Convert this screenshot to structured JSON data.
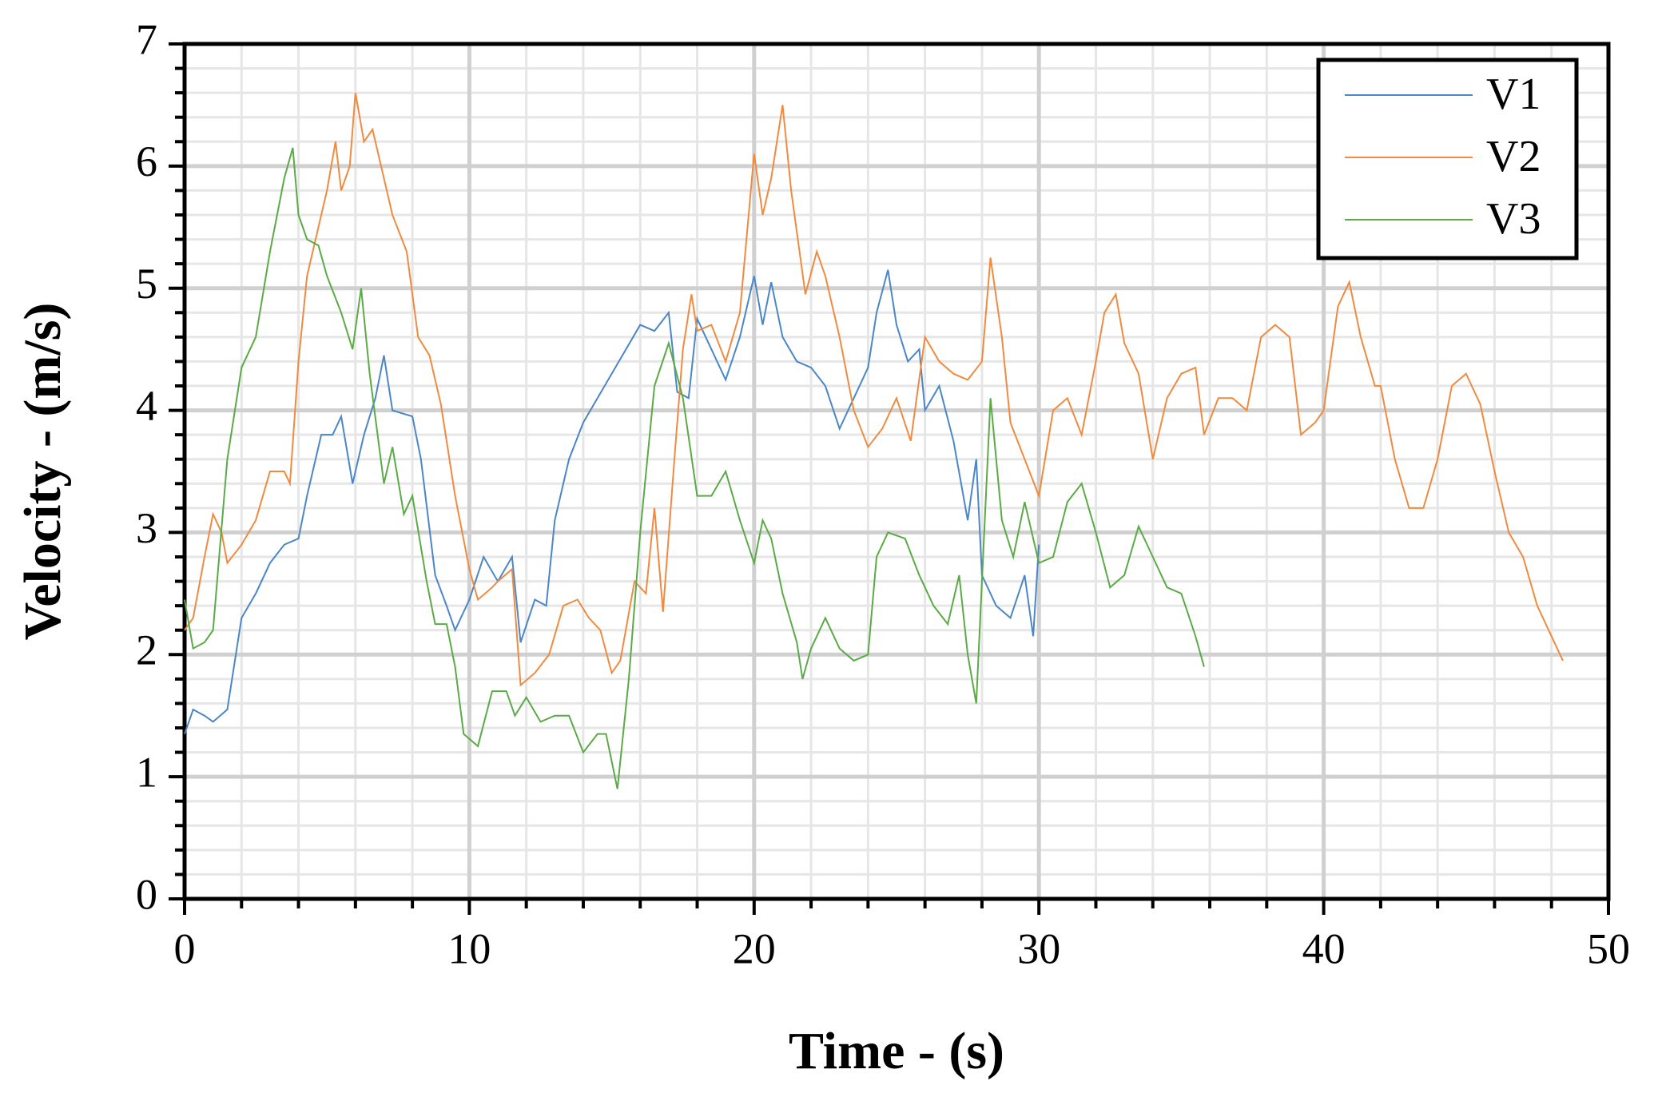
{
  "chart_data": {
    "type": "line",
    "xlabel": "Time - (s)",
    "ylabel": "Velocity - (m/s)",
    "xlim": [
      0,
      50
    ],
    "ylim": [
      0,
      7
    ],
    "xticks": [
      0,
      10,
      20,
      30,
      40,
      50
    ],
    "yticks": [
      0,
      1,
      2,
      3,
      4,
      5,
      6,
      7
    ],
    "grid": true,
    "minor_grid": true,
    "legend": "upper right",
    "series": [
      {
        "name": "V1",
        "color": "#4a86c8",
        "x": [
          0,
          0.3,
          0.7,
          1,
          1.5,
          2,
          2.5,
          3,
          3.5,
          4,
          4.3,
          4.8,
          5.2,
          5.5,
          5.9,
          6.3,
          6.7,
          7,
          7.3,
          8,
          8.3,
          8.8,
          9.2,
          9.5,
          10,
          10.5,
          11,
          11.5,
          11.8,
          12.3,
          12.7,
          13,
          13.5,
          14,
          14.5,
          15,
          15.5,
          16,
          16.5,
          17,
          17.3,
          17.7,
          18,
          18.5,
          19,
          19.5,
          20,
          20.3,
          20.6,
          21,
          21.5,
          22,
          22.5,
          23,
          23.5,
          24,
          24.3,
          24.7,
          25,
          25.4,
          25.8,
          26,
          26.5,
          27,
          27.5,
          27.8,
          28,
          28.5,
          29,
          29.5,
          29.8,
          30
        ],
        "values": [
          1.35,
          1.55,
          1.5,
          1.45,
          1.55,
          2.3,
          2.5,
          2.75,
          2.9,
          2.95,
          3.3,
          3.8,
          3.8,
          3.95,
          3.4,
          3.8,
          4.1,
          4.45,
          4.0,
          3.95,
          3.6,
          2.65,
          2.4,
          2.2,
          2.45,
          2.8,
          2.6,
          2.8,
          2.1,
          2.45,
          2.4,
          3.1,
          3.6,
          3.9,
          4.1,
          4.3,
          4.5,
          4.7,
          4.65,
          4.8,
          4.15,
          4.1,
          4.75,
          4.5,
          4.25,
          4.6,
          5.1,
          4.7,
          5.05,
          4.6,
          4.4,
          4.35,
          4.2,
          3.85,
          4.1,
          4.35,
          4.8,
          5.15,
          4.7,
          4.4,
          4.5,
          4.0,
          4.2,
          3.75,
          3.1,
          3.6,
          2.65,
          2.4,
          2.3,
          2.65,
          2.15,
          2.9
        ]
      },
      {
        "name": "V2",
        "color": "#f08a3e",
        "x": [
          0,
          0.3,
          0.7,
          1,
          1.3,
          1.5,
          2,
          2.5,
          3,
          3.5,
          3.7,
          4,
          4.3,
          4.7,
          5,
          5.3,
          5.5,
          5.8,
          6,
          6.3,
          6.6,
          7,
          7.3,
          7.8,
          8.2,
          8.6,
          9,
          9.5,
          10,
          10.3,
          10.8,
          11,
          11.5,
          11.8,
          12.3,
          12.8,
          13.3,
          13.8,
          14.2,
          14.6,
          15,
          15.3,
          15.8,
          16.2,
          16.5,
          16.8,
          17.2,
          17.5,
          17.8,
          18,
          18.5,
          19,
          19.5,
          20,
          20.3,
          20.6,
          21,
          21.3,
          21.8,
          22.2,
          22.5,
          23,
          23.5,
          24,
          24.5,
          25,
          25.5,
          26,
          26.5,
          27,
          27.5,
          28,
          28.3,
          28.7,
          29,
          29.5,
          30,
          30.5,
          31,
          31.5,
          32,
          32.3,
          32.7,
          33,
          33.5,
          34,
          34.5,
          35,
          35.5,
          35.8,
          36.3,
          36.8,
          37.3,
          37.8,
          38.3,
          38.8,
          39.2,
          39.7,
          40,
          40.5,
          40.9,
          41.3,
          41.8,
          42,
          42.5,
          43,
          43.5,
          44,
          44.5,
          45,
          45.5,
          46,
          46.5,
          47,
          47.5,
          48,
          48.4
        ],
        "values": [
          2.2,
          2.3,
          2.8,
          3.15,
          3.0,
          2.75,
          2.9,
          3.1,
          3.5,
          3.5,
          3.4,
          4.4,
          5.1,
          5.5,
          5.8,
          6.2,
          5.8,
          6.0,
          6.6,
          6.2,
          6.3,
          5.9,
          5.6,
          5.3,
          4.6,
          4.45,
          4.05,
          3.3,
          2.7,
          2.45,
          2.55,
          2.6,
          2.7,
          1.75,
          1.85,
          2.0,
          2.4,
          2.45,
          2.3,
          2.2,
          1.85,
          1.95,
          2.6,
          2.5,
          3.2,
          2.35,
          3.6,
          4.5,
          4.95,
          4.65,
          4.7,
          4.4,
          4.8,
          6.1,
          5.6,
          5.9,
          6.5,
          5.8,
          4.95,
          5.3,
          5.1,
          4.6,
          4.0,
          3.7,
          3.85,
          4.1,
          3.75,
          4.6,
          4.4,
          4.3,
          4.25,
          4.4,
          5.25,
          4.6,
          3.9,
          3.6,
          3.3,
          4.0,
          4.1,
          3.8,
          4.4,
          4.8,
          4.95,
          4.55,
          4.3,
          3.6,
          4.1,
          4.3,
          4.35,
          3.8,
          4.1,
          4.1,
          4.0,
          4.6,
          4.7,
          4.6,
          3.8,
          3.9,
          4.0,
          4.85,
          5.05,
          4.6,
          4.2,
          4.2,
          3.6,
          3.2,
          3.2,
          3.6,
          4.2,
          4.3,
          4.05,
          3.5,
          3.0,
          2.8,
          2.4,
          2.15,
          1.95
        ]
      },
      {
        "name": "V3",
        "color": "#5aaa46",
        "x": [
          0,
          0.3,
          0.7,
          1,
          1.5,
          2,
          2.5,
          3,
          3.5,
          3.8,
          4,
          4.3,
          4.7,
          5,
          5.5,
          5.9,
          6.2,
          6.5,
          7,
          7.3,
          7.7,
          8,
          8.5,
          8.8,
          9.2,
          9.5,
          9.8,
          10.3,
          10.8,
          11.3,
          11.6,
          12,
          12.5,
          13,
          13.5,
          14,
          14.5,
          14.8,
          15.2,
          15.6,
          16,
          16.5,
          17,
          17.5,
          18,
          18.5,
          19,
          19.5,
          20,
          20.3,
          20.6,
          21,
          21.5,
          21.7,
          22,
          22.5,
          23,
          23.5,
          24,
          24.3,
          24.7,
          25.3,
          25.8,
          26.3,
          26.8,
          27.2,
          27.5,
          27.8,
          28.3,
          28.7,
          29.1,
          29.5,
          30,
          30.5,
          31,
          31.5,
          32,
          32.5,
          33,
          33.5,
          34,
          34.5,
          35,
          35.5,
          35.8
        ],
        "values": [
          2.45,
          2.05,
          2.1,
          2.2,
          3.6,
          4.35,
          4.6,
          5.3,
          5.9,
          6.15,
          5.6,
          5.4,
          5.35,
          5.1,
          4.8,
          4.5,
          5.0,
          4.3,
          3.4,
          3.7,
          3.15,
          3.3,
          2.6,
          2.25,
          2.25,
          1.9,
          1.35,
          1.25,
          1.7,
          1.7,
          1.5,
          1.65,
          1.45,
          1.5,
          1.5,
          1.2,
          1.35,
          1.35,
          0.9,
          1.8,
          3.0,
          4.2,
          4.55,
          4.1,
          3.3,
          3.3,
          3.5,
          3.1,
          2.75,
          3.1,
          2.95,
          2.5,
          2.1,
          1.8,
          2.05,
          2.3,
          2.05,
          1.95,
          2.0,
          2.8,
          3.0,
          2.95,
          2.65,
          2.4,
          2.25,
          2.65,
          2.0,
          1.6,
          4.1,
          3.1,
          2.8,
          3.25,
          2.75,
          2.8,
          3.25,
          3.4,
          3.0,
          2.55,
          2.65,
          3.05,
          2.8,
          2.55,
          2.5,
          2.15,
          1.9
        ]
      }
    ]
  }
}
